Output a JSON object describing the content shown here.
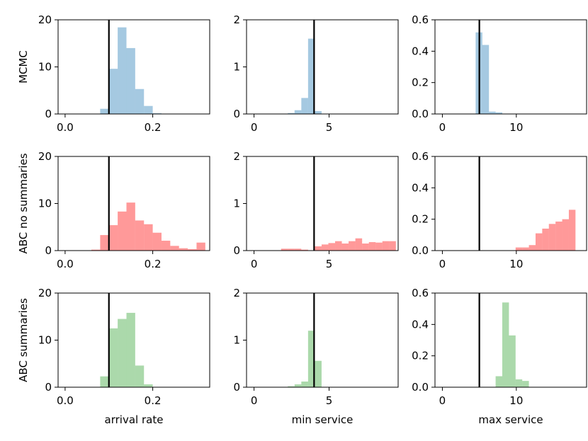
{
  "chart_data": {
    "type": "histogram-grid",
    "rows": [
      {
        "name": "MCMC",
        "color": "#1f77b4"
      },
      {
        "name": "ABC no summaries",
        "color": "#ff0000"
      },
      {
        "name": "ABC summaries",
        "color": "#2ca02c"
      }
    ],
    "columns": [
      {
        "xlabel": "arrival rate",
        "xlim": [
          -0.016,
          0.33
        ],
        "xticks": [
          0.0,
          0.2
        ],
        "xtick_labels": [
          "0.0",
          "0.2"
        ],
        "ylim": [
          0,
          20
        ],
        "yticks": [
          0,
          10,
          20
        ],
        "ytick_labels": [
          "0",
          "10",
          "20"
        ],
        "true_value": 0.1
      },
      {
        "xlabel": "min service",
        "xlim": [
          -0.5,
          9.6
        ],
        "xticks": [
          0,
          5
        ],
        "xtick_labels": [
          "0",
          "5"
        ],
        "ylim": [
          0,
          2
        ],
        "yticks": [
          0,
          1,
          2
        ],
        "ytick_labels": [
          "0",
          "1",
          "2"
        ],
        "true_value": 4.0
      },
      {
        "xlabel": "max service",
        "xlim": [
          -1,
          19.5
        ],
        "xticks": [
          0,
          10
        ],
        "xtick_labels": [
          "0",
          "10"
        ],
        "ylim": [
          0,
          0.6
        ],
        "yticks": [
          0.0,
          0.2,
          0.4,
          0.6
        ],
        "ytick_labels": [
          "0.0",
          "0.2",
          "0.4",
          "0.6"
        ],
        "true_value": 5.0
      }
    ],
    "panels": [
      [
        {
          "bin_start": 0.0,
          "bin_width": 0.02,
          "values": [
            0,
            0,
            0,
            0.02,
            1.1,
            9.6,
            18.4,
            14.0,
            5.3,
            1.7,
            0.15,
            0,
            0,
            0,
            0,
            0
          ]
        },
        {
          "bin_start": 0.0,
          "bin_width": 0.45,
          "values": [
            0,
            0,
            0,
            0,
            0,
            0.02,
            0.08,
            0.34,
            1.6,
            0.06,
            0,
            0,
            0,
            0,
            0,
            0,
            0,
            0,
            0,
            0,
            0
          ]
        },
        {
          "bin_start": 0.0,
          "bin_width": 0.9,
          "values": [
            0,
            0,
            0,
            0,
            0,
            0.52,
            0.44,
            0.015,
            0.01,
            0,
            0,
            0,
            0,
            0,
            0,
            0,
            0,
            0,
            0,
            0,
            0
          ]
        }
      ],
      [
        {
          "bin_start": 0.0,
          "bin_width": 0.02,
          "values": [
            0,
            0,
            0,
            0.2,
            3.3,
            5.4,
            8.3,
            10.2,
            6.4,
            5.6,
            3.8,
            2.1,
            1.0,
            0.5,
            0.3,
            1.7
          ]
        },
        {
          "bin_start": 0.0,
          "bin_width": 0.45,
          "values": [
            0,
            0,
            0,
            0,
            0.04,
            0.04,
            0.04,
            0.02,
            0,
            0.09,
            0.13,
            0.16,
            0.2,
            0.15,
            0.2,
            0.26,
            0.15,
            0.18,
            0.17,
            0.2,
            0.2
          ]
        },
        {
          "bin_start": 0.0,
          "bin_width": 0.9,
          "values": [
            0,
            0,
            0,
            0,
            0,
            0,
            0,
            0,
            0,
            0,
            0,
            0.02,
            0.02,
            0.035,
            0.11,
            0.14,
            0.17,
            0.185,
            0.2,
            0.26,
            0
          ]
        }
      ],
      [
        {
          "bin_start": 0.0,
          "bin_width": 0.02,
          "values": [
            0,
            0,
            0,
            0.02,
            2.3,
            12.5,
            14.5,
            15.8,
            4.6,
            0.6,
            0.05,
            0,
            0,
            0,
            0,
            0
          ]
        },
        {
          "bin_start": 0.0,
          "bin_width": 0.45,
          "values": [
            0,
            0,
            0,
            0,
            0,
            0.02,
            0.06,
            0.12,
            1.2,
            0.56,
            0,
            0,
            0,
            0,
            0,
            0,
            0,
            0,
            0,
            0,
            0
          ]
        },
        {
          "bin_start": 0.0,
          "bin_width": 0.9,
          "values": [
            0,
            0,
            0,
            0,
            0,
            0,
            0,
            0,
            0.07,
            0.54,
            0.33,
            0.05,
            0.04,
            0,
            0,
            0,
            0,
            0,
            0,
            0,
            0
          ]
        }
      ]
    ]
  }
}
